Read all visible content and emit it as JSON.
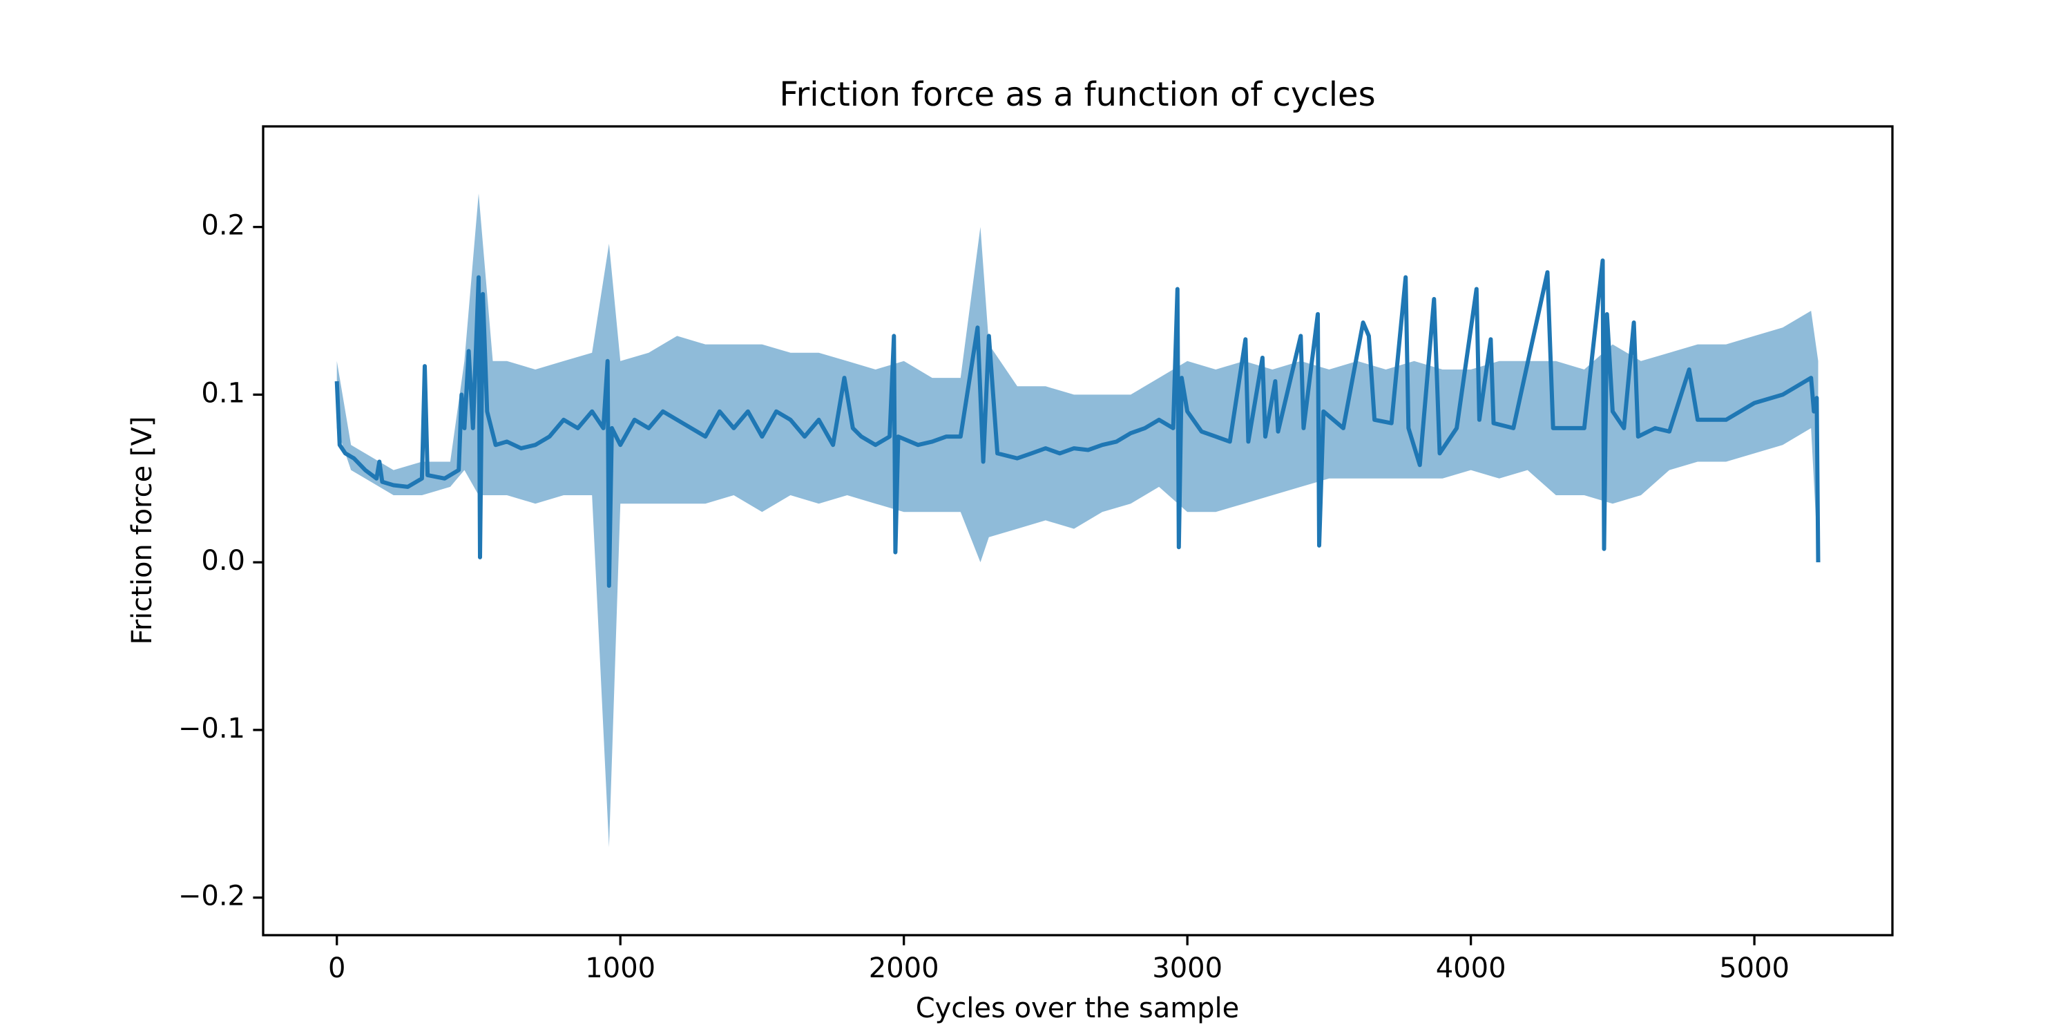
{
  "chart_data": {
    "type": "line",
    "title": "Friction force as a function of cycles",
    "xlabel": "Cycles over the sample",
    "ylabel": "Friction force [V]",
    "xlim": [
      -260,
      5487
    ],
    "ylim": [
      -0.2224,
      0.26
    ],
    "xticks": [
      0,
      1000,
      2000,
      3000,
      4000,
      5000
    ],
    "yticks": [
      {
        "value": -0.2,
        "label": "−0.2"
      },
      {
        "value": -0.1,
        "label": "−0.1"
      },
      {
        "value": 0,
        "label": "0.0"
      },
      0.1,
      0.2
    ],
    "grid": false,
    "band": {
      "color": "#1f77b4",
      "opacity": 0.5,
      "x": [
        0,
        50,
        100,
        200,
        300,
        400,
        450,
        500,
        550,
        600,
        700,
        800,
        900,
        960,
        1000,
        1100,
        1200,
        1300,
        1400,
        1500,
        1600,
        1700,
        1800,
        1900,
        2000,
        2100,
        2200,
        2270,
        2300,
        2400,
        2500,
        2600,
        2700,
        2800,
        2900,
        3000,
        3100,
        3200,
        3300,
        3400,
        3500,
        3600,
        3700,
        3800,
        3900,
        4000,
        4100,
        4200,
        4300,
        4400,
        4500,
        4600,
        4700,
        4800,
        4900,
        5000,
        5100,
        5200,
        5225
      ],
      "upper": [
        0.12,
        0.07,
        0.065,
        0.055,
        0.06,
        0.06,
        0.12,
        0.22,
        0.12,
        0.12,
        0.115,
        0.12,
        0.125,
        0.19,
        0.12,
        0.125,
        0.135,
        0.13,
        0.13,
        0.13,
        0.125,
        0.125,
        0.12,
        0.115,
        0.12,
        0.11,
        0.11,
        0.2,
        0.13,
        0.105,
        0.105,
        0.1,
        0.1,
        0.1,
        0.11,
        0.12,
        0.115,
        0.12,
        0.115,
        0.12,
        0.115,
        0.12,
        0.115,
        0.12,
        0.115,
        0.115,
        0.12,
        0.12,
        0.12,
        0.115,
        0.13,
        0.12,
        0.125,
        0.13,
        0.13,
        0.135,
        0.14,
        0.15,
        0.12
      ],
      "lower": [
        0.08,
        0.055,
        0.05,
        0.04,
        0.04,
        0.045,
        0.055,
        0.04,
        0.04,
        0.04,
        0.035,
        0.04,
        0.04,
        -0.17,
        0.035,
        0.035,
        0.035,
        0.035,
        0.04,
        0.03,
        0.04,
        0.035,
        0.04,
        0.035,
        0.03,
        0.03,
        0.03,
        0.0,
        0.015,
        0.02,
        0.025,
        0.02,
        0.03,
        0.035,
        0.045,
        0.03,
        0.03,
        0.035,
        0.04,
        0.045,
        0.05,
        0.05,
        0.05,
        0.05,
        0.05,
        0.055,
        0.05,
        0.055,
        0.04,
        0.04,
        0.035,
        0.04,
        0.055,
        0.06,
        0.06,
        0.065,
        0.07,
        0.08,
        0.0
      ]
    },
    "series": [
      {
        "color": "#1f77b4",
        "x": [
          0,
          10,
          30,
          60,
          100,
          140,
          150,
          160,
          200,
          250,
          300,
          310,
          320,
          380,
          430,
          440,
          450,
          465,
          480,
          500,
          505,
          515,
          530,
          560,
          600,
          650,
          700,
          750,
          800,
          850,
          900,
          940,
          955,
          960,
          970,
          1000,
          1050,
          1100,
          1150,
          1200,
          1250,
          1300,
          1350,
          1400,
          1450,
          1500,
          1550,
          1600,
          1650,
          1700,
          1750,
          1790,
          1820,
          1850,
          1900,
          1950,
          1965,
          1970,
          1980,
          2050,
          2100,
          2150,
          2200,
          2260,
          2280,
          2300,
          2330,
          2400,
          2450,
          2500,
          2550,
          2600,
          2650,
          2700,
          2750,
          2800,
          2850,
          2900,
          2950,
          2965,
          2970,
          2980,
          3000,
          3050,
          3100,
          3150,
          3205,
          3215,
          3265,
          3275,
          3310,
          3320,
          3400,
          3410,
          3460,
          3465,
          3480,
          3550,
          3620,
          3640,
          3660,
          3720,
          3770,
          3780,
          3820,
          3870,
          3890,
          3950,
          4020,
          4030,
          4070,
          4080,
          4150,
          4270,
          4290,
          4400,
          4465,
          4470,
          4480,
          4500,
          4540,
          4575,
          4590,
          4650,
          4700,
          4770,
          4800,
          4900,
          5000,
          5100,
          5200,
          5210,
          5220,
          5225
        ],
        "values": [
          0.108,
          0.07,
          0.065,
          0.062,
          0.055,
          0.05,
          0.06,
          0.048,
          0.046,
          0.045,
          0.05,
          0.117,
          0.052,
          0.05,
          0.055,
          0.1,
          0.08,
          0.126,
          0.08,
          0.17,
          0.003,
          0.16,
          0.09,
          0.07,
          0.072,
          0.068,
          0.07,
          0.075,
          0.085,
          0.08,
          0.09,
          0.08,
          0.12,
          -0.014,
          0.08,
          0.07,
          0.085,
          0.08,
          0.09,
          0.085,
          0.08,
          0.075,
          0.09,
          0.08,
          0.09,
          0.075,
          0.09,
          0.085,
          0.075,
          0.085,
          0.07,
          0.11,
          0.08,
          0.075,
          0.07,
          0.075,
          0.135,
          0.006,
          0.075,
          0.07,
          0.072,
          0.075,
          0.075,
          0.14,
          0.06,
          0.135,
          0.065,
          0.062,
          0.065,
          0.068,
          0.065,
          0.068,
          0.067,
          0.07,
          0.072,
          0.077,
          0.08,
          0.085,
          0.08,
          0.163,
          0.009,
          0.11,
          0.09,
          0.078,
          0.075,
          0.072,
          0.133,
          0.072,
          0.122,
          0.075,
          0.108,
          0.078,
          0.135,
          0.08,
          0.148,
          0.01,
          0.09,
          0.08,
          0.143,
          0.135,
          0.085,
          0.083,
          0.17,
          0.08,
          0.058,
          0.157,
          0.065,
          0.08,
          0.163,
          0.085,
          0.133,
          0.083,
          0.08,
          0.173,
          0.08,
          0.08,
          0.18,
          0.008,
          0.148,
          0.09,
          0.08,
          0.143,
          0.075,
          0.08,
          0.078,
          0.115,
          0.085,
          0.085,
          0.095,
          0.1,
          0.11,
          0.09,
          0.098,
          0.0
        ]
      }
    ]
  }
}
